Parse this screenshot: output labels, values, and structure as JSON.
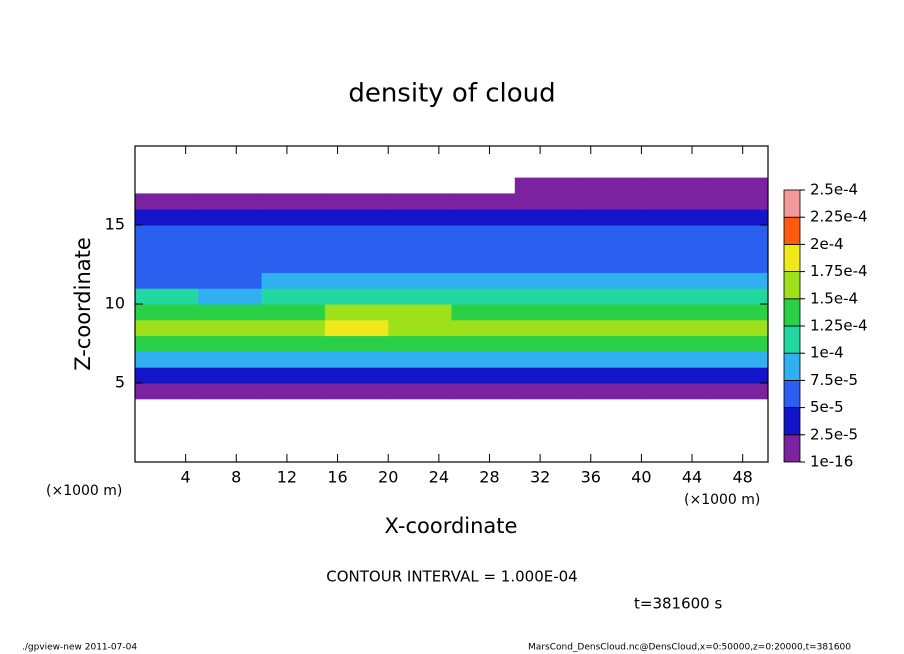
{
  "chart_data": {
    "type": "heatmap",
    "title": "density of cloud",
    "xlabel": "X-coordinate",
    "ylabel": "Z-coordinate",
    "x_unit_left": "(×1000 m)",
    "x_unit_right": "(×1000 m)",
    "contour_note": "CONTOUR INTERVAL = 1.000E-04",
    "time_note": "t=381600 s",
    "footer_left": "./gpview-new  2011-07-04",
    "footer_right": "MarsCond_DensCloud.nc@DensCloud,x=0:50000,z=0:20000,t=381600",
    "xlim": [
      0,
      50
    ],
    "xticks": [
      4,
      8,
      12,
      16,
      20,
      24,
      28,
      32,
      36,
      40,
      44,
      48
    ],
    "ylim": [
      0,
      20
    ],
    "yticks": [
      5,
      10,
      15
    ],
    "x": [
      2.5,
      7.5,
      12.5,
      17.5,
      22.5,
      27.5,
      32.5,
      37.5,
      42.5,
      47.5
    ],
    "y": [
      4.5,
      5.5,
      6.5,
      7.5,
      8.5,
      9.5,
      10.5,
      11.5,
      12.5,
      13.5,
      14.5,
      15.5,
      16.5,
      17.5
    ],
    "values": [
      [
        1e-05,
        1e-05,
        1e-05,
        1e-05,
        1e-05,
        1e-05,
        1e-05,
        1e-05,
        1e-05,
        1e-05
      ],
      [
        3e-05,
        3e-05,
        3e-05,
        3e-05,
        3e-05,
        3e-05,
        3e-05,
        3e-05,
        3e-05,
        3e-05
      ],
      [
        8.5e-05,
        8e-05,
        8.5e-05,
        9e-05,
        8.5e-05,
        8e-05,
        8.5e-05,
        8e-05,
        8.5e-05,
        8.5e-05
      ],
      [
        0.00013,
        0.000135,
        0.00014,
        0.00014,
        0.000135,
        0.00013,
        0.00013,
        0.00013,
        0.000135,
        0.00013
      ],
      [
        0.000155,
        0.00016,
        0.000165,
        0.00018,
        0.00017,
        0.00016,
        0.000155,
        0.000155,
        0.00016,
        0.000155
      ],
      [
        0.000135,
        0.00014,
        0.000145,
        0.000155,
        0.00015,
        0.00014,
        0.00014,
        0.00014,
        0.000145,
        0.00014
      ],
      [
        0.000105,
        9e-05,
        0.0001,
        0.00011,
        0.000105,
        0.0001,
        0.000105,
        0.00011,
        0.00011,
        0.000105
      ],
      [
        7e-05,
        7e-05,
        7.5e-05,
        8e-05,
        8e-05,
        7.5e-05,
        8e-05,
        8e-05,
        8e-05,
        7.5e-05
      ],
      [
        6e-05,
        6e-05,
        6.5e-05,
        6e-05,
        6e-05,
        6e-05,
        6.5e-05,
        6.5e-05,
        6e-05,
        6e-05
      ],
      [
        5.5e-05,
        5.5e-05,
        5.5e-05,
        5.5e-05,
        5.5e-05,
        5.5e-05,
        5.5e-05,
        5.5e-05,
        5.5e-05,
        5.5e-05
      ],
      [
        5.5e-05,
        5.5e-05,
        5.5e-05,
        5.5e-05,
        5.5e-05,
        5.5e-05,
        5.5e-05,
        5.5e-05,
        5.5e-05,
        5.5e-05
      ],
      [
        3.5e-05,
        3.5e-05,
        3.5e-05,
        3.5e-05,
        3.5e-05,
        3.5e-05,
        3.5e-05,
        3.5e-05,
        3.5e-05,
        3.5e-05
      ],
      [
        1e-05,
        1e-05,
        1e-05,
        1e-05,
        1e-05,
        1e-05,
        1e-05,
        1e-05,
        1e-05,
        1e-05
      ],
      [
        null,
        null,
        null,
        null,
        null,
        null,
        1e-05,
        1e-05,
        1e-05,
        1e-05
      ]
    ],
    "colorbar_ticks": [
      {
        "value": 1e-16,
        "label": "1e-16"
      },
      {
        "value": 2.5e-05,
        "label": "2.5e-5"
      },
      {
        "value": 5e-05,
        "label": "5e-5"
      },
      {
        "value": 7.5e-05,
        "label": "7.5e-5"
      },
      {
        "value": 0.0001,
        "label": "1e-4"
      },
      {
        "value": 0.000125,
        "label": "1.25e-4"
      },
      {
        "value": 0.00015,
        "label": "1.5e-4"
      },
      {
        "value": 0.000175,
        "label": "1.75e-4"
      },
      {
        "value": 0.0002,
        "label": "2e-4"
      },
      {
        "value": 0.000225,
        "label": "2.25e-4"
      },
      {
        "value": 0.00025,
        "label": "2.5e-4"
      }
    ],
    "colors": [
      "#7a22a0",
      "#1414c8",
      "#2a5ff0",
      "#30b0f0",
      "#20d8a0",
      "#2ad048",
      "#9ee01a",
      "#f0e81a",
      "#ff5a10",
      "#f59a9a"
    ]
  }
}
